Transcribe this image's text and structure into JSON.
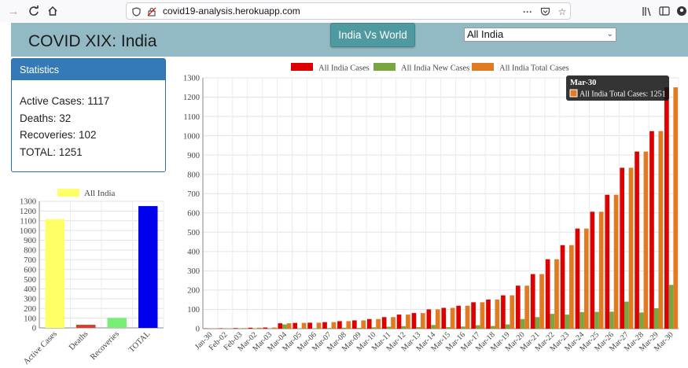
{
  "browser": {
    "url": "covid19-analysis.herokuapp.com"
  },
  "header": {
    "title": "COVID XIX: India",
    "vs_button": "India Vs World",
    "region_select": "All India"
  },
  "stats": {
    "heading": "Statistics",
    "active": "Active Cases: 1117",
    "deaths": "Deaths: 32",
    "recoveries": "Recoveries: 102",
    "total": "TOTAL: 1251"
  },
  "tooltip": {
    "title": "Mar-30",
    "body": "All India Total Cases: 1251"
  },
  "chart_data": [
    {
      "type": "bar",
      "categories": [
        "Active Cases",
        "Deaths",
        "Recoveries",
        "TOTAL"
      ],
      "series": [
        {
          "name": "All India",
          "values": [
            1117,
            32,
            102,
            1251
          ]
        }
      ],
      "colors": [
        "#ffff66",
        "#e03a2a",
        "#77ee77",
        "#0000ee"
      ],
      "legend_color": "#ffff66",
      "ylim": [
        0,
        1300
      ],
      "yticks": [
        0,
        100,
        200,
        300,
        400,
        500,
        600,
        700,
        800,
        900,
        1000,
        1100,
        1200,
        1300
      ],
      "legend": "top-center",
      "grid": true
    },
    {
      "type": "bar",
      "categories": [
        "Jan-30",
        "Feb-02",
        "Feb-03",
        "Mar-02",
        "Mar-03",
        "Mar-04",
        "Mar-05",
        "Mar-06",
        "Mar-07",
        "Mar-08",
        "Mar-09",
        "Mar-10",
        "Mar-11",
        "Mar-12",
        "Mar-13",
        "Mar-14",
        "Mar-15",
        "Mar-16",
        "Mar-17",
        "Mar-18",
        "Mar-19",
        "Mar-20",
        "Mar-21",
        "Mar-22",
        "Mar-23",
        "Mar-24",
        "Mar-25",
        "Mar-26",
        "Mar-27",
        "Mar-28",
        "Mar-29",
        "Mar-30"
      ],
      "series": [
        {
          "name": "All India Cases",
          "color": "#dd0000",
          "values": [
            1,
            2,
            3,
            5,
            6,
            28,
            30,
            31,
            34,
            39,
            43,
            50,
            60,
            73,
            81,
            100,
            108,
            119,
            137,
            151,
            173,
            223,
            283,
            360,
            433,
            519,
            606,
            694,
            834,
            918,
            1024,
            1251
          ]
        },
        {
          "name": "All India New Cases",
          "color": "#7aa641",
          "values": [
            1,
            1,
            1,
            2,
            1,
            22,
            2,
            1,
            3,
            5,
            4,
            7,
            10,
            13,
            8,
            19,
            8,
            11,
            18,
            14,
            22,
            50,
            60,
            77,
            73,
            86,
            87,
            88,
            140,
            84,
            106,
            227
          ]
        },
        {
          "name": "All India Total Cases",
          "color": "#e07b22",
          "values": [
            1,
            2,
            3,
            5,
            6,
            28,
            30,
            31,
            34,
            39,
            43,
            50,
            60,
            73,
            81,
            100,
            108,
            119,
            137,
            151,
            173,
            223,
            283,
            360,
            433,
            519,
            606,
            694,
            834,
            918,
            1024,
            1251
          ]
        }
      ],
      "ylim": [
        0,
        1300
      ],
      "yticks": [
        0,
        100,
        200,
        300,
        400,
        500,
        600,
        700,
        800,
        900,
        1000,
        1100,
        1200,
        1300
      ],
      "legend": "top-center",
      "grid": true
    }
  ]
}
